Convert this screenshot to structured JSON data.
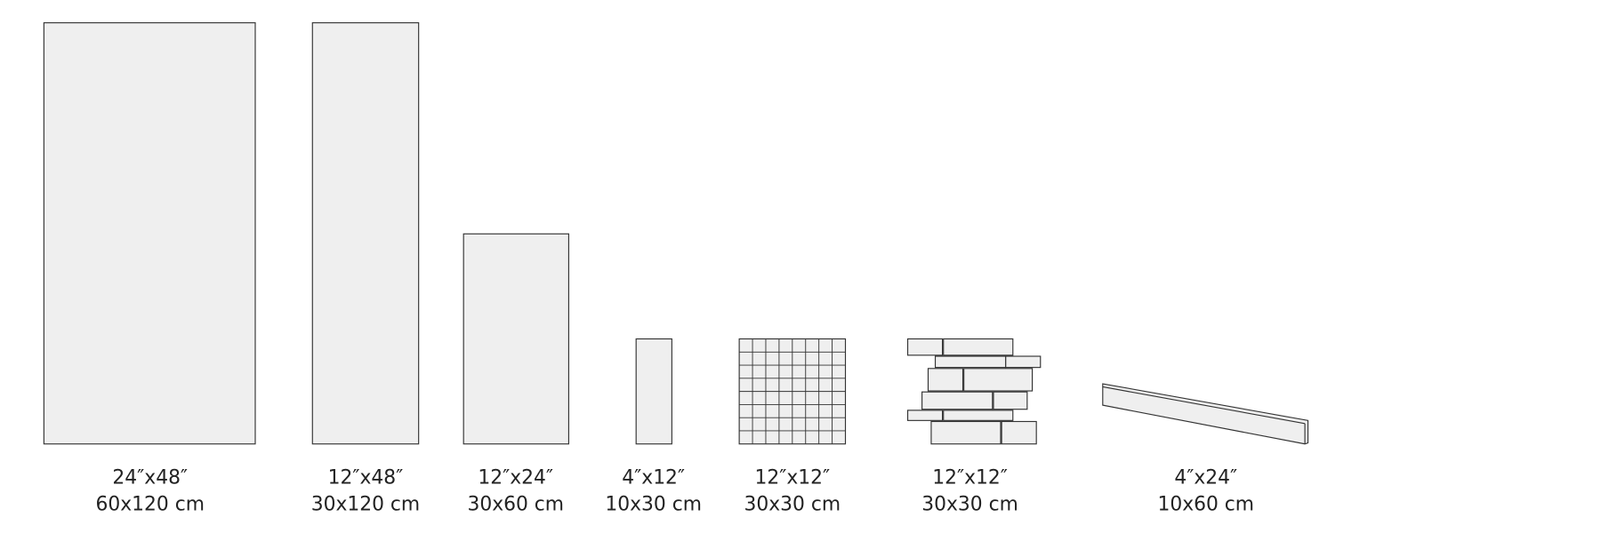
{
  "tiles": [
    {
      "imperial": "24″x48″",
      "metric": "60x120 cm"
    },
    {
      "imperial": "12″x48″",
      "metric": "30x120 cm"
    },
    {
      "imperial": "12″x24″",
      "metric": "30x60 cm"
    },
    {
      "imperial": "4″x12″",
      "metric": "10x30 cm"
    },
    {
      "imperial": "12″x12″",
      "metric": "30x30 cm"
    },
    {
      "imperial": "12″x12″",
      "metric": "30x30 cm"
    },
    {
      "imperial": "4″x24″",
      "metric": "10x60 cm"
    }
  ]
}
